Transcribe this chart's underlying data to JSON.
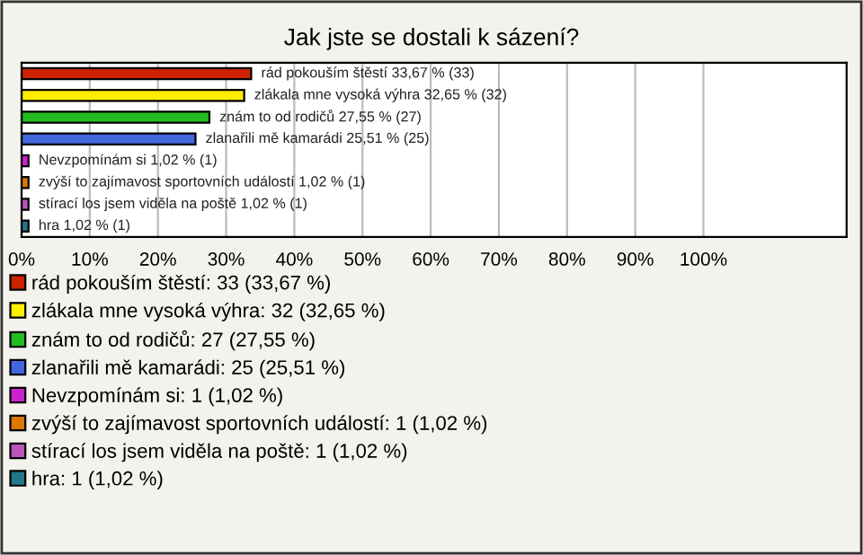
{
  "chart_data": {
    "type": "bar",
    "orientation": "horizontal",
    "title": "Jak jste se dostali k sázení?",
    "categories": [
      null,
      null,
      null,
      null,
      null,
      null,
      null,
      null
    ],
    "series": [
      {
        "name": "rád pokouším štěstí: 33 (33,67 %)",
        "color": "#cc2200",
        "values": [
          33.67,
          null,
          null,
          null,
          null,
          null,
          null,
          null
        ],
        "value_labels": [
          "rád pokouším štěstí 33,67 % (33)",
          null,
          null,
          null,
          null,
          null,
          null,
          null
        ]
      },
      {
        "name": "zlákala mne vysoká výhra: 32 (32,65 %)",
        "color": "#ffee00",
        "values": [
          null,
          32.65,
          null,
          null,
          null,
          null,
          null,
          null
        ],
        "value_labels": [
          null,
          "zlákala mne vysoká výhra 32,65 % (32)",
          null,
          null,
          null,
          null,
          null,
          null
        ]
      },
      {
        "name": "znám to od rodičů: 27 (27,55 %)",
        "color": "#22bb22",
        "values": [
          null,
          null,
          27.55,
          null,
          null,
          null,
          null,
          null
        ],
        "value_labels": [
          null,
          null,
          "znám to od rodičů 27,55 % (27)",
          null,
          null,
          null,
          null,
          null
        ]
      },
      {
        "name": "zlanařili mě kamarádi: 25 (25,51 %)",
        "color": "#4466dd",
        "values": [
          null,
          null,
          null,
          25.51,
          null,
          null,
          null,
          null
        ],
        "value_labels": [
          null,
          null,
          null,
          "zlanařili mě kamarádi 25,51 % (25)",
          null,
          null,
          null,
          null
        ]
      },
      {
        "name": "Nevzpomínám si: 1 (1,02 %)",
        "color": "#cc22cc",
        "values": [
          null,
          null,
          null,
          null,
          1.02,
          null,
          null,
          null
        ],
        "value_labels": [
          null,
          null,
          null,
          null,
          "Nevzpomínám si 1,02 % (1)",
          null,
          null,
          null
        ]
      },
      {
        "name": "zvýší to zajímavost sportovních událostí: 1 (1,02 %)",
        "color": "#dd7700",
        "values": [
          null,
          null,
          null,
          null,
          null,
          1.02,
          null,
          null
        ],
        "value_labels": [
          null,
          null,
          null,
          null,
          null,
          "zvýší to zajímavost sportovních událostí 1,02 % (1)",
          null,
          null
        ]
      },
      {
        "name": "stírací los jsem viděla na poště: 1 (1,02 %)",
        "color": "#bb55bb",
        "values": [
          null,
          null,
          null,
          null,
          null,
          null,
          1.02,
          null
        ],
        "value_labels": [
          null,
          null,
          null,
          null,
          null,
          null,
          "stírací los jsem viděla na poště 1,02 % (1)",
          null
        ]
      },
      {
        "name": "hra: 1 (1,02 %)",
        "color": "#227788",
        "values": [
          null,
          null,
          null,
          null,
          null,
          null,
          null,
          1.02
        ],
        "value_labels": [
          null,
          null,
          null,
          null,
          null,
          null,
          null,
          "hra 1,02 % (1)"
        ]
      }
    ],
    "xlim": [
      0,
      121
    ],
    "xticks": [
      {
        "value": 0,
        "label": "0%"
      },
      {
        "value": 10,
        "label": "10%"
      },
      {
        "value": 20,
        "label": "20%"
      },
      {
        "value": 30,
        "label": "30%"
      },
      {
        "value": 40,
        "label": "40%"
      },
      {
        "value": 50,
        "label": "50%"
      },
      {
        "value": 60,
        "label": "60%"
      },
      {
        "value": 70,
        "label": "70%"
      },
      {
        "value": 80,
        "label": "80%"
      },
      {
        "value": 90,
        "label": "90%"
      },
      {
        "value": 100,
        "label": "100%"
      }
    ],
    "grid": "x",
    "legend": "bottom"
  }
}
